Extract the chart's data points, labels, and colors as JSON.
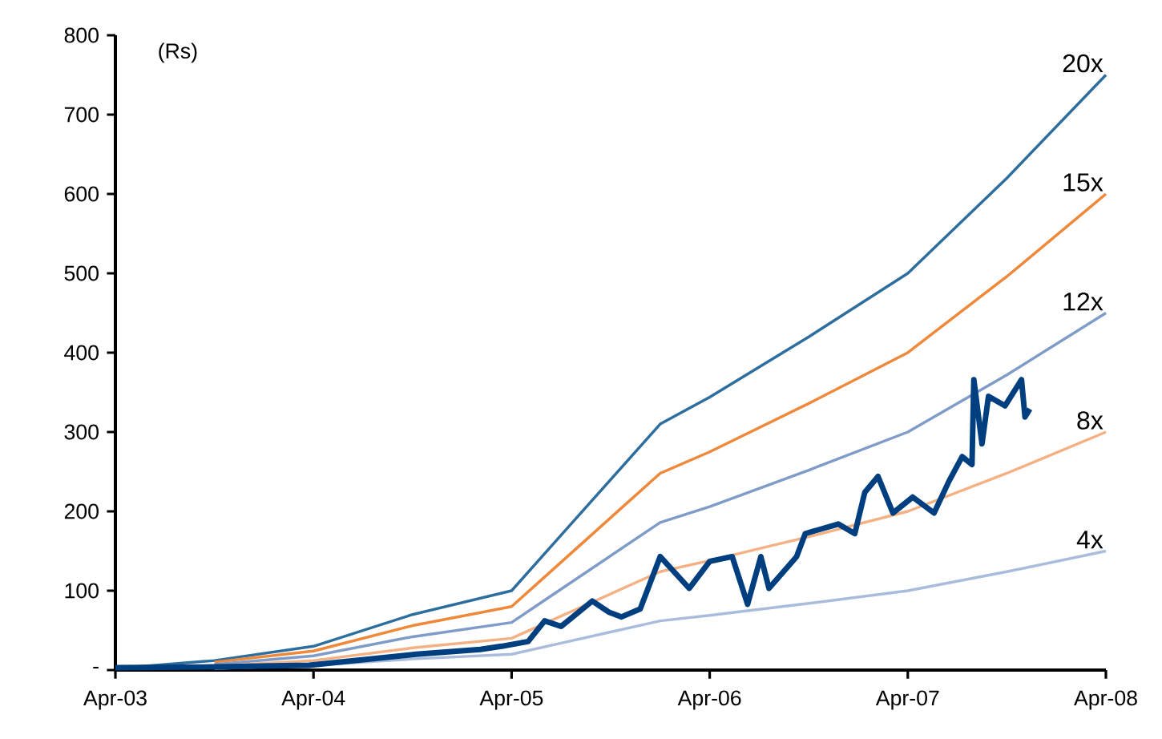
{
  "chart_data": {
    "type": "line",
    "ylabel": "(Rs)",
    "xlim": [
      "2003-04",
      "2008-04"
    ],
    "xticks": [
      {
        "value": "2003-04",
        "label": "Apr-03"
      },
      {
        "value": "2004-04",
        "label": "Apr-04"
      },
      {
        "value": "2005-04",
        "label": "Apr-05"
      },
      {
        "value": "2006-04",
        "label": "Apr-06"
      },
      {
        "value": "2007-04",
        "label": "Apr-07"
      },
      {
        "value": "2008-04",
        "label": "Apr-08"
      }
    ],
    "ylim": [
      0,
      800
    ],
    "yticks": [
      {
        "value": 0,
        "label": "-"
      },
      100,
      200,
      300,
      400,
      500,
      600,
      700,
      800
    ],
    "grid": false,
    "legend": false,
    "marker": "none",
    "line_style": "solid",
    "series": [
      {
        "name": "20x",
        "color": "#2e6e9e",
        "x": [
          "2003-04",
          "2003-10",
          "2004-04",
          "2004-10",
          "2005-04",
          "2005-07",
          "2005-10",
          "2006-01",
          "2006-04",
          "2006-10",
          "2007-04",
          "2007-10",
          "2008-04"
        ],
        "values": [
          2,
          12,
          30,
          70,
          100,
          170,
          240,
          310,
          344,
          420,
          500,
          620,
          750
        ]
      },
      {
        "name": "15x",
        "color": "#f0883a",
        "x": [
          "2003-10",
          "2004-04",
          "2004-10",
          "2005-04",
          "2005-07",
          "2005-10",
          "2006-01",
          "2006-04",
          "2006-10",
          "2007-04",
          "2007-10",
          "2008-04"
        ],
        "values": [
          10,
          24,
          56,
          80,
          136,
          192,
          248,
          275,
          336,
          400,
          496,
          600
        ]
      },
      {
        "name": "12x",
        "color": "#7f9cc8",
        "x": [
          "2003-10",
          "2004-04",
          "2004-10",
          "2005-04",
          "2005-07",
          "2005-10",
          "2006-01",
          "2006-04",
          "2006-10",
          "2007-04",
          "2007-10",
          "2008-04"
        ],
        "values": [
          7,
          18,
          42,
          60,
          102,
          144,
          186,
          206,
          252,
          300,
          372,
          450
        ]
      },
      {
        "name": "8x",
        "color": "#f4b183",
        "x": [
          "2003-10",
          "2004-04",
          "2004-10",
          "2005-04",
          "2005-07",
          "2005-10",
          "2006-01",
          "2006-04",
          "2006-10",
          "2007-04",
          "2007-10",
          "2008-04"
        ],
        "values": [
          5,
          12,
          28,
          40,
          68,
          96,
          124,
          138,
          168,
          200,
          248,
          300
        ]
      },
      {
        "name": "4x",
        "color": "#a9bcdc",
        "x": [
          "2003-10",
          "2004-04",
          "2004-10",
          "2005-04",
          "2005-07",
          "2005-10",
          "2006-01",
          "2006-04",
          "2006-10",
          "2007-04",
          "2007-10",
          "2008-04"
        ],
        "values": [
          2,
          6,
          14,
          20,
          34,
          48,
          62,
          69,
          84,
          100,
          124,
          150
        ]
      },
      {
        "color": "#003f7f",
        "x": [
          "2003-04-01",
          "2003-10-01",
          "2004-03-23",
          "2004-10-08",
          "2005-02-04",
          "2005-03-13",
          "2005-05-01",
          "2005-06-01",
          "2005-07-01",
          "2005-08-28",
          "2005-09-28",
          "2005-10-21",
          "2005-11-25",
          "2006-01-01",
          "2006-02-24",
          "2006-04-01",
          "2006-05-12",
          "2006-06-10",
          "2006-07-04",
          "2006-07-19",
          "2006-09-09",
          "2006-09-25",
          "2006-11-25",
          "2006-12-25",
          "2007-01-13",
          "2007-02-07",
          "2007-03-04",
          "2007-04-10",
          "2007-05-19",
          "2007-06-16",
          "2007-07-10",
          "2007-07-28",
          "2007-08-01",
          "2007-08-16",
          "2007-08-28",
          "2007-09-28",
          "2007-10-28",
          "2007-11-04",
          "2007-11-13"
        ],
        "values": [
          3,
          4,
          6,
          20,
          26,
          30,
          36,
          62,
          55,
          87,
          73,
          67,
          77,
          143,
          103,
          137,
          143,
          83,
          143,
          103,
          143,
          172,
          184,
          172,
          224,
          244,
          198,
          218,
          198,
          238,
          269,
          259,
          366,
          285,
          345,
          333,
          366,
          319,
          329
        ]
      }
    ]
  }
}
